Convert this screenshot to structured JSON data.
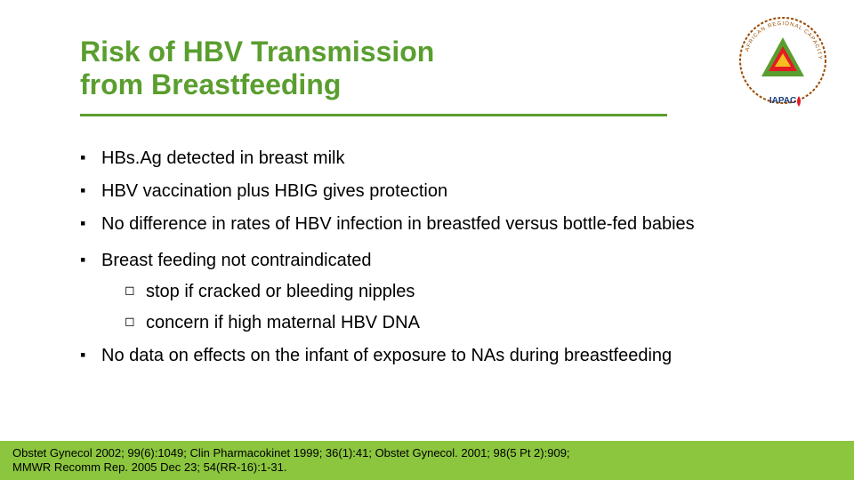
{
  "title_line1": "Risk of HBV Transmission",
  "title_line2": "from Breastfeeding",
  "title_color": "#5a9e2f",
  "underline_color": "#5a9e2f",
  "bullets": [
    {
      "text": "HBs.Ag detected in breast milk"
    },
    {
      "text": "HBV vaccination plus HBIG gives protection"
    },
    {
      "text": "No difference in rates of HBV infection in breastfed versus bottle-fed babies"
    },
    {
      "text": "Breast feeding not contraindicated",
      "children": [
        "stop if cracked or bleeding nipples",
        "concern if high maternal HBV DNA"
      ]
    },
    {
      "text": "No data on effects on the infant of exposure to NAs during breastfeeding"
    }
  ],
  "bullet_l1_marker": "▪",
  "bullet_l2_marker": "◻",
  "body_text_color": "#000000",
  "body_fontsize": 20,
  "footer_text_line1": "Obstet Gynecol 2002; 99(6):1049; Clin Pharmacokinet 1999; 36(1):41; Obstet Gynecol. 2001; 98(5 Pt 2):909;",
  "footer_text_line2": "MMWR Recomm Rep. 2005 Dec 23; 54(RR-16):1-31.",
  "footer_bg_color": "#8cc63f",
  "footer_text_color": "#000000",
  "logo": {
    "outer_text": "AFRICAN REGIONAL CAPACITY-BUILDING HUB",
    "inner_text": "IAPAC",
    "triangle_colors": [
      "#5a9e2f",
      "#e31b23",
      "#f5bd1f"
    ],
    "ring_color": "#9a4a00"
  },
  "background_color": "#ffffff"
}
